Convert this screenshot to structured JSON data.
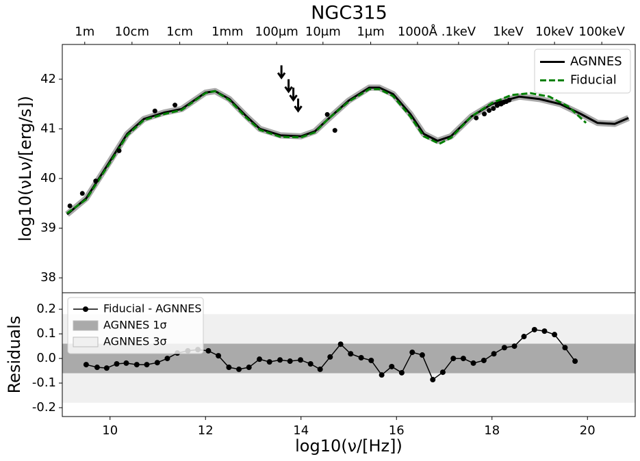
{
  "chart_data": [
    {
      "type": "line",
      "title": "NGC315",
      "ylabel": "log10(νLν/[erg/s])",
      "xlim": [
        9.0,
        21.0
      ],
      "ylim": [
        37.7,
        42.7
      ],
      "yticks": [
        38,
        39,
        40,
        41,
        42
      ],
      "x2ticks": [
        {
          "value": 9.47,
          "label": "1m"
        },
        {
          "value": 10.46,
          "label": "10cm"
        },
        {
          "value": 11.46,
          "label": "1cm"
        },
        {
          "value": 12.46,
          "label": "1mm"
        },
        {
          "value": 13.49,
          "label": "100μm"
        },
        {
          "value": 14.46,
          "label": "10μm"
        },
        {
          "value": 15.46,
          "label": "1μm"
        },
        {
          "value": 16.44,
          "label": "1000Å"
        },
        {
          "value": 17.3,
          "label": ".1keV"
        },
        {
          "value": 18.34,
          "label": "1keV"
        },
        {
          "value": 19.31,
          "label": "10keV"
        },
        {
          "value": 20.3,
          "label": "100keV"
        }
      ],
      "legend": "upper right",
      "series": [
        {
          "name": "AGNNES",
          "kind": "line",
          "color": "#000000",
          "band_color": "#aaaaaa",
          "style": "solid",
          "x": [
            9.1,
            9.5,
            10.0,
            10.36,
            10.71,
            11.14,
            11.5,
            12.0,
            12.2,
            12.5,
            12.86,
            13.14,
            13.57,
            14.0,
            14.29,
            14.57,
            15.0,
            15.43,
            15.64,
            15.93,
            16.29,
            16.57,
            16.86,
            17.14,
            17.57,
            18.0,
            18.57,
            19.0,
            19.43,
            19.86,
            20.21,
            20.57,
            20.86
          ],
          "values": [
            39.28,
            39.6,
            40.35,
            40.9,
            41.2,
            41.33,
            41.4,
            41.73,
            41.76,
            41.6,
            41.25,
            41.0,
            40.87,
            40.85,
            40.95,
            41.2,
            41.57,
            41.83,
            41.83,
            41.7,
            41.3,
            40.9,
            40.76,
            40.85,
            41.25,
            41.5,
            41.65,
            41.6,
            41.5,
            41.3,
            41.12,
            41.1,
            41.22
          ]
        },
        {
          "name": "Fiducial",
          "kind": "line",
          "color": "#008000",
          "style": "dashed",
          "x": [
            9.1,
            9.5,
            10.0,
            10.36,
            10.71,
            11.14,
            11.5,
            12.0,
            12.2,
            12.5,
            12.86,
            13.14,
            13.57,
            14.0,
            14.29,
            14.57,
            15.0,
            15.43,
            15.64,
            15.93,
            16.29,
            16.57,
            16.9,
            17.14,
            17.57,
            18.0,
            18.4,
            18.8,
            19.2,
            19.6,
            19.97
          ],
          "values": [
            39.3,
            39.58,
            40.32,
            40.87,
            41.18,
            41.3,
            41.38,
            41.72,
            41.76,
            41.58,
            41.22,
            40.98,
            40.84,
            40.83,
            40.93,
            41.2,
            41.55,
            41.8,
            41.8,
            41.66,
            41.25,
            40.85,
            40.7,
            40.82,
            41.25,
            41.52,
            41.68,
            41.72,
            41.65,
            41.45,
            41.12
          ]
        },
        {
          "kind": "scatter",
          "color": "#000000",
          "x": [
            9.16,
            9.42,
            9.7,
            10.19,
            10.94,
            11.36,
            14.55,
            14.71,
            17.67,
            17.84,
            17.94,
            18.03,
            18.11,
            18.19,
            18.24,
            18.3,
            18.36
          ],
          "values": [
            39.45,
            39.7,
            39.95,
            40.56,
            41.36,
            41.48,
            41.29,
            40.97,
            41.22,
            41.3,
            41.37,
            41.41,
            41.47,
            41.5,
            41.53,
            41.55,
            41.58
          ]
        },
        {
          "kind": "upper_limit",
          "color": "#000000",
          "x": [
            13.59,
            13.74,
            13.84,
            13.94
          ],
          "values": [
            42.28,
            42.0,
            41.83,
            41.61
          ]
        }
      ]
    },
    {
      "type": "line",
      "ylabel": "Residuals",
      "xlabel": "log10(ν/[Hz])",
      "xlim": [
        9.0,
        21.0
      ],
      "ylim": [
        -0.236,
        0.267
      ],
      "xticks": [
        10,
        12,
        14,
        16,
        18,
        20
      ],
      "yticks": [
        -0.2,
        -0.1,
        {
          "value": 0,
          "label": "0.0"
        },
        0.1,
        0.2
      ],
      "legend": "upper left",
      "bands": [
        {
          "name": "AGNNES 1σ",
          "range": [
            -0.06,
            0.06
          ],
          "color": "#aaaaaa"
        },
        {
          "name": "AGNNES 3σ",
          "range": [
            -0.18,
            0.18
          ],
          "color": "#f0f0f0"
        }
      ],
      "series": [
        {
          "name": "Fiducial - AGNNES",
          "kind": "line",
          "markers": true,
          "color": "#000000",
          "style": "solid",
          "x": [
            9.5,
            9.73,
            9.93,
            10.14,
            10.34,
            10.56,
            10.77,
            10.99,
            11.2,
            11.41,
            11.63,
            11.84,
            12.06,
            12.27,
            12.49,
            12.7,
            12.91,
            13.13,
            13.34,
            13.56,
            13.77,
            13.99,
            14.2,
            14.4,
            14.61,
            14.83,
            15.04,
            15.26,
            15.47,
            15.69,
            15.9,
            16.11,
            16.33,
            16.54,
            16.76,
            16.97,
            17.19,
            17.4,
            17.61,
            17.83,
            18.04,
            18.26,
            18.47,
            18.67,
            18.89,
            19.1,
            19.31,
            19.53,
            19.74
          ],
          "values": [
            -0.025,
            -0.036,
            -0.039,
            -0.022,
            -0.019,
            -0.025,
            -0.025,
            -0.017,
            0.0,
            0.022,
            0.031,
            0.036,
            0.031,
            0.011,
            -0.036,
            -0.044,
            -0.036,
            -0.003,
            -0.014,
            -0.006,
            -0.011,
            -0.006,
            -0.022,
            -0.044,
            0.006,
            0.058,
            0.019,
            0.003,
            -0.008,
            -0.067,
            -0.033,
            -0.058,
            0.025,
            0.014,
            -0.086,
            -0.056,
            0.0,
            0.0,
            -0.019,
            -0.008,
            0.019,
            0.044,
            0.05,
            0.089,
            0.117,
            0.111,
            0.097,
            0.044,
            -0.011
          ]
        }
      ]
    }
  ]
}
